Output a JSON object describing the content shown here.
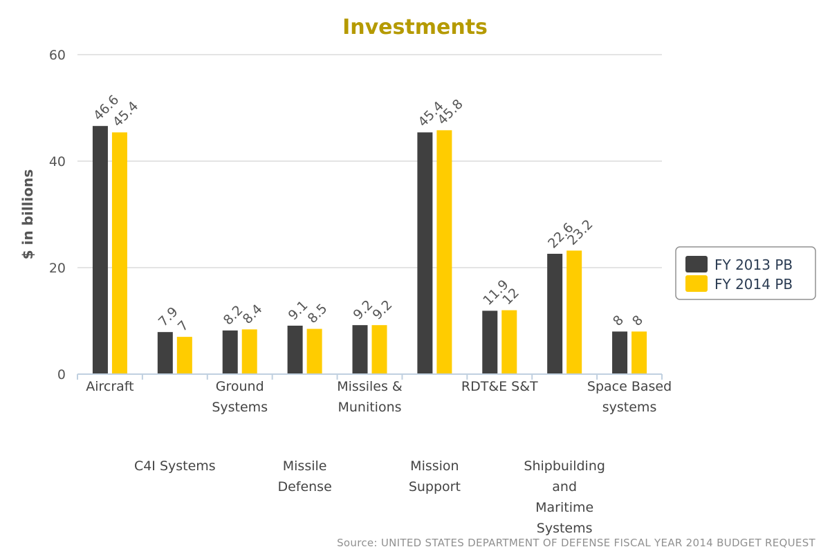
{
  "chart_data": {
    "type": "bar",
    "title": "Investments",
    "ylabel": "$ in billions",
    "xlabel": "",
    "ylim": [
      0,
      60
    ],
    "yticks": [
      0,
      20,
      40,
      60
    ],
    "grid": true,
    "legend_position": "right",
    "categories": [
      "Aircraft",
      "C4I Systems",
      "Ground Systems",
      "Missile Defense",
      "Missiles & Munitions",
      "Mission Support",
      "RDT&E S&T",
      "Shipbuilding and Maritime Systems",
      "Space Based systems"
    ],
    "series": [
      {
        "name": "FY 2013 PB",
        "color": "#404040",
        "values": [
          46.6,
          7.9,
          8.2,
          9.1,
          9.2,
          45.4,
          11.9,
          22.6,
          8
        ]
      },
      {
        "name": "FY 2014 PB",
        "color": "#ffcc00",
        "values": [
          45.4,
          7,
          8.4,
          8.5,
          9.2,
          45.8,
          12,
          23.2,
          8
        ]
      }
    ],
    "source": "Source: UNITED STATES DEPARTMENT OF DEFENSE FISCAL YEAR 2014 BUDGET REQUEST",
    "colors": {
      "title": "#b59a00",
      "grid": "#c8c8c8",
      "axis": "#c0d0e0"
    }
  }
}
